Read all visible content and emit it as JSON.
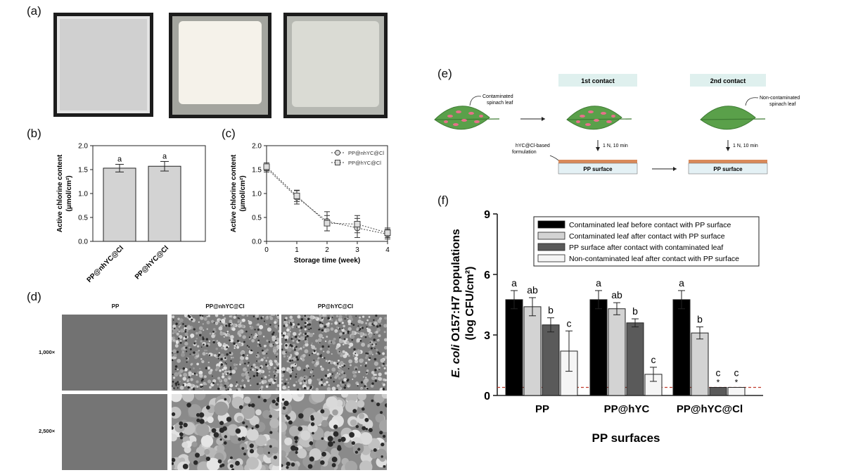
{
  "panels": {
    "a": {
      "label": "(a)"
    },
    "b": {
      "label": "(b)"
    },
    "c": {
      "label": "(c)"
    },
    "d": {
      "label": "(d)"
    },
    "e": {
      "label": "(e)"
    },
    "f": {
      "label": "(f)"
    }
  },
  "panel_a": {
    "photos": [
      {
        "name": "sample-1",
        "fill": "#cfcfcf",
        "border": "#e6e6e6"
      },
      {
        "name": "sample-2",
        "fill": "#f4f1ea",
        "border": "#9ea09a"
      },
      {
        "name": "sample-3",
        "fill": "#d8d9d2",
        "border": "#b2b4ae"
      }
    ]
  },
  "panel_d": {
    "columns": [
      "PP",
      "PP@nhYC@Cl",
      "PP@hYC@Cl"
    ],
    "rows": [
      "1,000×",
      "2,500×"
    ]
  },
  "panel_e": {
    "contact1": "1st contact",
    "contact2": "2nd contact",
    "contaminated_leaf": "Contaminated\nspinach leaf",
    "noncontaminated_leaf": "Non-contaminated\nspinach leaf",
    "formulation": "hYC@Cl-based\nformulation",
    "force1": "1 N, 10 min",
    "force2": "1 N, 10 min",
    "surface1": "PP surface",
    "surface2": "PP surface"
  },
  "chart_data": [
    {
      "id": "b",
      "type": "bar",
      "categories": [
        "PP@nhYC@Cl",
        "PP@hYC@Cl"
      ],
      "values": [
        1.53,
        1.57
      ],
      "errors": [
        0.08,
        0.1
      ],
      "letters": [
        "a",
        "a"
      ],
      "ylabel": "Active chlorine content\n(μmol/cm²)",
      "ylim": [
        0,
        2.0
      ],
      "yticks": [
        "0.0",
        "0.5",
        "1.0",
        "1.5",
        "2.0"
      ],
      "colors": {
        "bar": "#d3d3d3"
      }
    },
    {
      "id": "c",
      "type": "line",
      "xlabel": "Storage time (week)",
      "ylabel": "Active chlorine content\n(μmol/cm²)",
      "xlim": [
        0,
        4
      ],
      "ylim": [
        0,
        2.0
      ],
      "xticks": [
        "0",
        "1",
        "2",
        "3",
        "4"
      ],
      "yticks": [
        "0.0",
        "0.5",
        "1.0",
        "1.5",
        "2.0"
      ],
      "x": [
        0,
        1,
        2,
        3,
        4
      ],
      "series": [
        {
          "name": "PP@nhYC@Cl",
          "marker": "circle",
          "values": [
            1.53,
            0.92,
            0.42,
            0.28,
            0.15
          ],
          "errors": [
            0.08,
            0.14,
            0.2,
            0.2,
            0.1
          ]
        },
        {
          "name": "PP@hYC@Cl",
          "marker": "square",
          "values": [
            1.56,
            0.95,
            0.38,
            0.36,
            0.18
          ],
          "errors": [
            0.08,
            0.12,
            0.16,
            0.18,
            0.1
          ]
        }
      ]
    },
    {
      "id": "f",
      "type": "bar",
      "title": "",
      "xlabel": "PP surfaces",
      "ylabel": "E. coli O157:H7 populations\n(log CFU/cm²)",
      "ylabel_italic": "E. coli",
      "ylabel_rest": " O157:H7 populations",
      "ylabel_line2": "(log CFU/cm²)",
      "categories": [
        "PP",
        "PP@hYC",
        "PP@hYC@Cl"
      ],
      "ylim": [
        0,
        9
      ],
      "yticks": [
        "0",
        "3",
        "6",
        "9"
      ],
      "detection_limit": 0.4,
      "series": [
        {
          "name": "Contaminated leaf before contact with PP surface",
          "color": "#000000",
          "values": [
            4.75,
            4.75,
            4.75
          ],
          "errors": [
            0.45,
            0.45,
            0.45
          ],
          "letters": [
            "a",
            "a",
            "a"
          ]
        },
        {
          "name": "Contaminated leaf after contact with PP surface",
          "color": "#d3d3d3",
          "values": [
            4.4,
            4.3,
            3.1
          ],
          "errors": [
            0.45,
            0.3,
            0.3
          ],
          "letters": [
            "ab",
            "ab",
            "b"
          ]
        },
        {
          "name": "PP surface after contact with contaminated leaf",
          "color": "#5a5a5a",
          "values": [
            3.5,
            3.6,
            0.4
          ],
          "errors": [
            0.35,
            0.2,
            0
          ],
          "letters": [
            "b",
            "b",
            "c"
          ],
          "stars": [
            "",
            "",
            "*"
          ]
        },
        {
          "name": "Non-contaminated leaf after contact with PP surface",
          "color": "#f5f5f5",
          "values": [
            2.2,
            1.05,
            0.4
          ],
          "errors": [
            1.0,
            0.35,
            0
          ],
          "letters": [
            "c",
            "c",
            "c"
          ],
          "stars": [
            "",
            "",
            "*"
          ]
        }
      ]
    }
  ]
}
